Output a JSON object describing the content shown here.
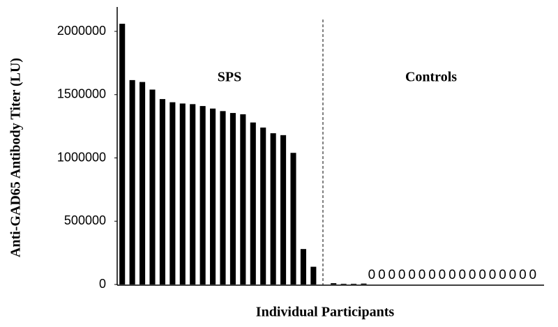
{
  "chart_data": {
    "type": "bar",
    "x_label": "Individual Participants",
    "y_label": "Anti-GAD65 Antibody Titer (LU)",
    "group_labels": [
      "SPS",
      "Controls"
    ],
    "categories": [
      null,
      null,
      null,
      null,
      null,
      null,
      null,
      null,
      null,
      null,
      null,
      null,
      null,
      null,
      null,
      null,
      null,
      null,
      null,
      null,
      null,
      null,
      null,
      null,
      null,
      null,
      null,
      null,
      null,
      null,
      null,
      null,
      null,
      null,
      null,
      null,
      null,
      null,
      null,
      null,
      null,
      null
    ],
    "values": [
      2060000,
      1615000,
      1600000,
      1540000,
      1465000,
      1440000,
      1430000,
      1425000,
      1410000,
      1390000,
      1370000,
      1355000,
      1345000,
      1280000,
      1240000,
      1195000,
      1180000,
      1040000,
      280000,
      140000,
      null,
      10000,
      5000,
      5000,
      7000,
      0,
      0,
      0,
      0,
      0,
      0,
      0,
      0,
      0,
      0,
      0,
      0,
      0,
      0,
      0,
      0,
      0
    ],
    "color": "#000000",
    "ylim": [
      0,
      2200000
    ],
    "yticks": [
      0,
      500000,
      1000000,
      1500000,
      2000000
    ],
    "grid": false
  }
}
